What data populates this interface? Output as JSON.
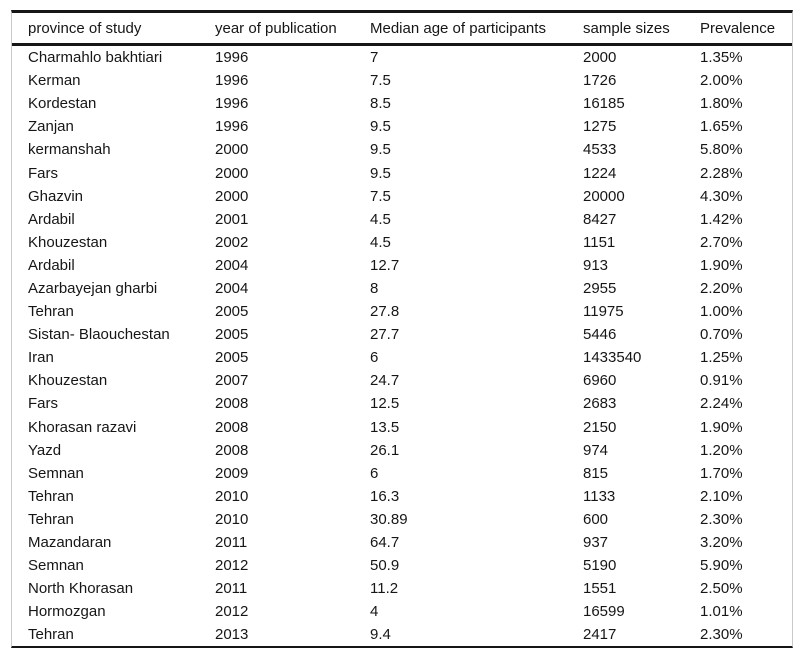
{
  "chart_data": {
    "type": "table",
    "columns": [
      "province of study",
      "year of publication",
      "Median age of participants",
      "sample sizes",
      "Prevalence"
    ],
    "rows": [
      [
        "Charmahlo bakhtiari",
        "1996",
        "7",
        "2000",
        "1.35%"
      ],
      [
        "Kerman",
        "1996",
        "7.5",
        "1726",
        "2.00%"
      ],
      [
        "Kordestan",
        "1996",
        "8.5",
        "16185",
        "1.80%"
      ],
      [
        "Zanjan",
        "1996",
        "9.5",
        "1275",
        "1.65%"
      ],
      [
        "kermanshah",
        "2000",
        "9.5",
        "4533",
        "5.80%"
      ],
      [
        "Fars",
        "2000",
        "9.5",
        "1224",
        "2.28%"
      ],
      [
        "Ghazvin",
        "2000",
        "7.5",
        "20000",
        "4.30%"
      ],
      [
        "Ardabil",
        "2001",
        "4.5",
        "8427",
        "1.42%"
      ],
      [
        "Khouzestan",
        "2002",
        "4.5",
        "1151",
        "2.70%"
      ],
      [
        "Ardabil",
        "2004",
        "12.7",
        "913",
        "1.90%"
      ],
      [
        "Azarbayejan gharbi",
        "2004",
        "8",
        "2955",
        "2.20%"
      ],
      [
        "Tehran",
        "2005",
        "27.8",
        "11975",
        "1.00%"
      ],
      [
        "Sistan- Blaouchestan",
        "2005",
        "27.7",
        "5446",
        "0.70%"
      ],
      [
        "Iran",
        "2005",
        "6",
        "1433540",
        "1.25%"
      ],
      [
        "Khouzestan",
        "2007",
        "24.7",
        "6960",
        "0.91%"
      ],
      [
        "Fars",
        "2008",
        "12.5",
        "2683",
        "2.24%"
      ],
      [
        "Khorasan razavi",
        "2008",
        "13.5",
        "2150",
        "1.90%"
      ],
      [
        "Yazd",
        "2008",
        "26.1",
        "974",
        "1.20%"
      ],
      [
        "Semnan",
        "2009",
        "6",
        "815",
        "1.70%"
      ],
      [
        "Tehran",
        "2010",
        "16.3",
        "1133",
        "2.10%"
      ],
      [
        "Tehran",
        "2010",
        "30.89",
        "600",
        "2.30%"
      ],
      [
        "Mazandaran",
        "2011",
        "64.7",
        "937",
        "3.20%"
      ],
      [
        "Semnan",
        "2012",
        "50.9",
        "5190",
        "5.90%"
      ],
      [
        "North Khorasan",
        "2011",
        "11.2",
        "1551",
        "2.50%"
      ],
      [
        "Hormozgan",
        "2012",
        "4",
        "16599",
        "1.01%"
      ],
      [
        "Tehran",
        "2013",
        "9.4",
        "2417",
        "2.30%"
      ]
    ]
  },
  "colors": {
    "rule": "#161616",
    "side_border": "#c9c9c9",
    "text": "#161616",
    "background": "#ffffff"
  }
}
